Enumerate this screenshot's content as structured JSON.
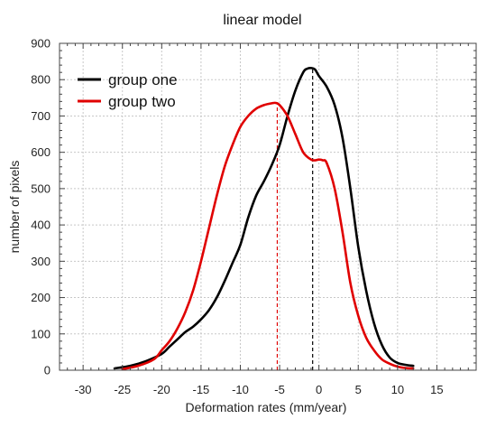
{
  "chart_data": {
    "type": "line",
    "title": "linear model",
    "xlabel": "Deformation rates (mm/year)",
    "ylabel": "number of pixels",
    "xlim": [
      -33,
      20
    ],
    "ylim": [
      0,
      900
    ],
    "xticks": [
      -30,
      -25,
      -20,
      -15,
      -10,
      -5,
      0,
      5,
      10,
      15
    ],
    "yticks": [
      0,
      100,
      200,
      300,
      400,
      500,
      600,
      700,
      800,
      900
    ],
    "grid": true,
    "legend_position": "top-left",
    "series": [
      {
        "name": "group one",
        "color": "#000000",
        "x": [
          -26,
          -24,
          -22,
          -20,
          -19,
          -18,
          -17,
          -16,
          -15,
          -14,
          -13,
          -12,
          -11,
          -10,
          -9,
          -8,
          -7,
          -6,
          -5,
          -4,
          -3,
          -2,
          -1.5,
          -1,
          -0.5,
          0,
          1,
          2,
          3,
          4,
          5,
          6,
          7,
          8,
          9,
          10,
          11,
          12
        ],
        "y": [
          5,
          12,
          25,
          45,
          65,
          85,
          105,
          120,
          140,
          165,
          200,
          245,
          295,
          345,
          420,
          480,
          520,
          565,
          620,
          700,
          770,
          820,
          830,
          832,
          828,
          810,
          780,
          730,
          640,
          500,
          340,
          220,
          130,
          70,
          35,
          20,
          15,
          12
        ]
      },
      {
        "name": "group two",
        "color": "#e00000",
        "x": [
          -25,
          -23,
          -21,
          -20,
          -19,
          -18,
          -17,
          -16,
          -15,
          -14,
          -13,
          -12,
          -11,
          -10,
          -9,
          -8,
          -7,
          -6,
          -5.5,
          -5,
          -4,
          -3,
          -2,
          -1,
          -0.5,
          0,
          0.5,
          1,
          2,
          3,
          4,
          5,
          6,
          7,
          8,
          9,
          10,
          11,
          12
        ],
        "y": [
          3,
          12,
          30,
          55,
          80,
          115,
          160,
          220,
          300,
          390,
          480,
          560,
          620,
          670,
          700,
          720,
          730,
          735,
          736,
          730,
          700,
          650,
          600,
          580,
          578,
          580,
          578,
          570,
          500,
          380,
          240,
          150,
          90,
          55,
          30,
          18,
          10,
          6,
          5
        ]
      }
    ],
    "reference_lines": [
      {
        "x": -5.3,
        "color": "#e00000",
        "style": "dashed"
      },
      {
        "x": -0.8,
        "color": "#000000",
        "style": "dashed"
      }
    ]
  }
}
